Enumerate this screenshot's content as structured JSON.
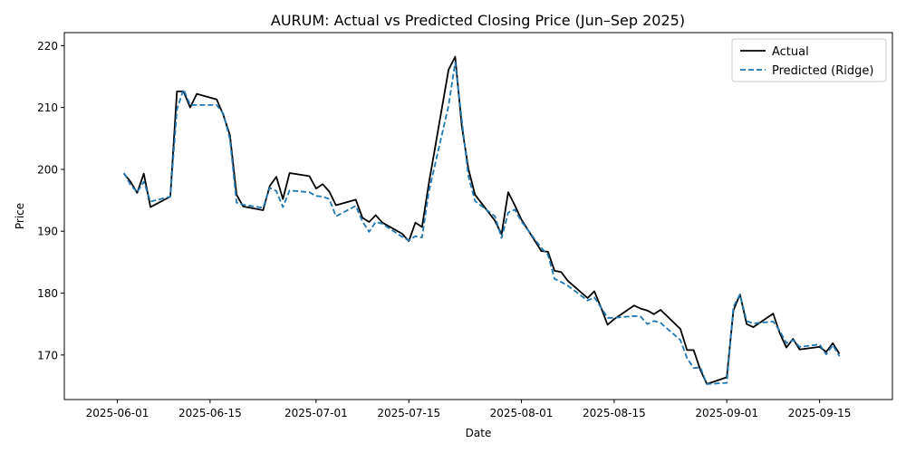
{
  "chart_data": {
    "type": "line",
    "title": "AURUM: Actual vs Predicted Closing Price (Jun–Sep 2025)",
    "xlabel": "Date",
    "ylabel": "Price",
    "x_ticks": [
      "2025-06-01",
      "2025-06-15",
      "2025-07-01",
      "2025-07-15",
      "2025-08-01",
      "2025-08-15",
      "2025-09-01",
      "2025-09-15"
    ],
    "y_ticks": [
      170,
      180,
      190,
      200,
      210,
      220
    ],
    "xlim": [
      "2025-05-24",
      "2025-09-26"
    ],
    "ylim": [
      162.8,
      222.1
    ],
    "grid": false,
    "legend_position": "top-right",
    "series": [
      {
        "name": "Actual",
        "color": "#000000",
        "style": "solid",
        "x": [
          "2025-06-02",
          "2025-06-03",
          "2025-06-04",
          "2025-06-05",
          "2025-06-06",
          "2025-06-09",
          "2025-06-10",
          "2025-06-11",
          "2025-06-12",
          "2025-06-13",
          "2025-06-16",
          "2025-06-17",
          "2025-06-18",
          "2025-06-19",
          "2025-06-20",
          "2025-06-23",
          "2025-06-24",
          "2025-06-25",
          "2025-06-26",
          "2025-06-27",
          "2025-06-30",
          "2025-07-01",
          "2025-07-02",
          "2025-07-03",
          "2025-07-04",
          "2025-07-07",
          "2025-07-08",
          "2025-07-09",
          "2025-07-10",
          "2025-07-11",
          "2025-07-14",
          "2025-07-15",
          "2025-07-16",
          "2025-07-17",
          "2025-07-18",
          "2025-07-21",
          "2025-07-22",
          "2025-07-23",
          "2025-07-24",
          "2025-07-25",
          "2025-07-28",
          "2025-07-29",
          "2025-07-30",
          "2025-07-31",
          "2025-08-01",
          "2025-08-04",
          "2025-08-05",
          "2025-08-06",
          "2025-08-07",
          "2025-08-08",
          "2025-08-11",
          "2025-08-12",
          "2025-08-13",
          "2025-08-14",
          "2025-08-15",
          "2025-08-18",
          "2025-08-19",
          "2025-08-20",
          "2025-08-21",
          "2025-08-22",
          "2025-08-25",
          "2025-08-26",
          "2025-08-27",
          "2025-08-28",
          "2025-08-29",
          "2025-09-01",
          "2025-09-02",
          "2025-09-03",
          "2025-09-04",
          "2025-09-05",
          "2025-09-08",
          "2025-09-09",
          "2025-09-10",
          "2025-09-11",
          "2025-09-12",
          "2025-09-15",
          "2025-09-16",
          "2025-09-17",
          "2025-09-18"
        ],
        "y": [
          199.3,
          198.0,
          196.2,
          199.3,
          193.9,
          195.6,
          212.6,
          212.6,
          210.0,
          212.2,
          211.3,
          208.8,
          205.5,
          195.9,
          194.0,
          193.4,
          197.3,
          198.8,
          195.2,
          199.4,
          198.9,
          196.9,
          197.6,
          196.4,
          194.2,
          195.1,
          192.2,
          191.5,
          192.6,
          191.4,
          189.6,
          188.4,
          191.4,
          190.7,
          197.6,
          216.1,
          218.2,
          207.0,
          200.1,
          195.9,
          191.7,
          189.5,
          196.3,
          194.2,
          191.9,
          186.8,
          186.7,
          183.6,
          183.4,
          182.0,
          179.2,
          180.3,
          177.7,
          174.9,
          175.8,
          178.0,
          177.5,
          177.2,
          176.6,
          177.3,
          174.2,
          170.8,
          170.8,
          167.6,
          165.3,
          166.4,
          177.2,
          179.8,
          175.0,
          174.5,
          176.7,
          173.5,
          171.2,
          172.6,
          170.9,
          171.3,
          170.5,
          171.9,
          170.2
        ]
      },
      {
        "name": "Predicted (Ridge)",
        "color": "#1f77b4",
        "style": "dashed",
        "x": [
          "2025-06-02",
          "2025-06-03",
          "2025-06-04",
          "2025-06-05",
          "2025-06-06",
          "2025-06-09",
          "2025-06-10",
          "2025-06-11",
          "2025-06-12",
          "2025-06-13",
          "2025-06-16",
          "2025-06-17",
          "2025-06-18",
          "2025-06-19",
          "2025-06-20",
          "2025-06-23",
          "2025-06-24",
          "2025-06-25",
          "2025-06-26",
          "2025-06-27",
          "2025-06-30",
          "2025-07-01",
          "2025-07-02",
          "2025-07-03",
          "2025-07-04",
          "2025-07-07",
          "2025-07-08",
          "2025-07-09",
          "2025-07-10",
          "2025-07-11",
          "2025-07-14",
          "2025-07-15",
          "2025-07-16",
          "2025-07-17",
          "2025-07-18",
          "2025-07-21",
          "2025-07-22",
          "2025-07-23",
          "2025-07-24",
          "2025-07-25",
          "2025-07-28",
          "2025-07-29",
          "2025-07-30",
          "2025-07-31",
          "2025-08-01",
          "2025-08-04",
          "2025-08-05",
          "2025-08-06",
          "2025-08-07",
          "2025-08-08",
          "2025-08-11",
          "2025-08-12",
          "2025-08-13",
          "2025-08-14",
          "2025-08-15",
          "2025-08-18",
          "2025-08-19",
          "2025-08-20",
          "2025-08-21",
          "2025-08-22",
          "2025-08-25",
          "2025-08-26",
          "2025-08-27",
          "2025-08-28",
          "2025-08-29",
          "2025-09-01",
          "2025-09-02",
          "2025-09-03",
          "2025-09-04",
          "2025-09-05",
          "2025-09-08",
          "2025-09-09",
          "2025-09-10",
          "2025-09-11",
          "2025-09-12",
          "2025-09-15",
          "2025-09-16",
          "2025-09-17",
          "2025-09-18"
        ],
        "y": [
          199.4,
          197.5,
          196.3,
          198.0,
          194.8,
          195.6,
          209.7,
          212.9,
          210.4,
          210.4,
          210.4,
          209.0,
          204.9,
          194.6,
          194.3,
          193.8,
          197.0,
          196.5,
          193.9,
          196.6,
          196.3,
          195.7,
          195.6,
          195.2,
          192.4,
          194.1,
          191.6,
          189.9,
          191.5,
          191.2,
          189.1,
          188.5,
          189.2,
          189.0,
          196.3,
          210.3,
          217.3,
          208.0,
          198.9,
          194.9,
          192.4,
          188.9,
          193.0,
          193.5,
          191.6,
          187.3,
          186.2,
          182.3,
          181.8,
          181.2,
          178.8,
          179.3,
          177.7,
          176.0,
          176.0,
          176.3,
          176.2,
          175.0,
          175.5,
          175.2,
          172.4,
          169.5,
          167.9,
          168.0,
          165.3,
          165.5,
          177.8,
          179.8,
          175.5,
          175.1,
          175.4,
          173.9,
          171.9,
          172.4,
          171.3,
          171.7,
          170.1,
          171.6,
          169.8
        ]
      }
    ]
  }
}
